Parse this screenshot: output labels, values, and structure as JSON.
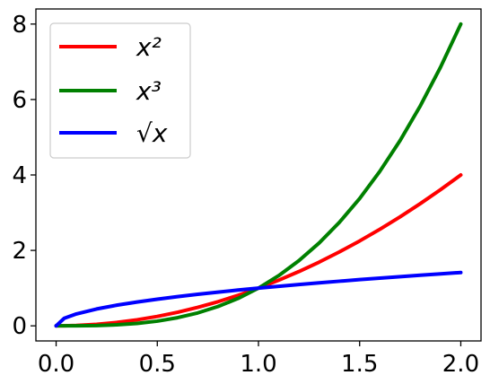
{
  "chart_data": {
    "type": "line",
    "xlim": [
      -0.1,
      2.1
    ],
    "ylim": [
      -0.4,
      8.4
    ],
    "xticks": [
      0.0,
      0.5,
      1.0,
      1.5,
      2.0
    ],
    "xtick_labels": [
      "0.0",
      "0.5",
      "1.0",
      "1.5",
      "2.0"
    ],
    "yticks": [
      0,
      2,
      4,
      6,
      8
    ],
    "ytick_labels": [
      "0",
      "2",
      "4",
      "6",
      "8"
    ],
    "grid": false,
    "legend_position": "top-left",
    "x": [
      0.0,
      0.04,
      0.1,
      0.2,
      0.3,
      0.4,
      0.5,
      0.6,
      0.7,
      0.8,
      0.9,
      1.0,
      1.1,
      1.2,
      1.3,
      1.4,
      1.5,
      1.6,
      1.7,
      1.8,
      1.9,
      2.0
    ],
    "series": [
      {
        "name": "x²",
        "color": "#ff0000",
        "values": [
          0.0,
          0.0016,
          0.01,
          0.04,
          0.09,
          0.16,
          0.25,
          0.36,
          0.49,
          0.64,
          0.81,
          1.0,
          1.21,
          1.44,
          1.69,
          1.96,
          2.25,
          2.56,
          2.89,
          3.24,
          3.61,
          4.0
        ]
      },
      {
        "name": "x³",
        "color": "#008000",
        "values": [
          0.0,
          6.4e-05,
          0.001,
          0.008,
          0.027,
          0.064,
          0.125,
          0.216,
          0.343,
          0.512,
          0.729,
          1.0,
          1.331,
          1.728,
          2.197,
          2.744,
          3.375,
          4.096,
          4.913,
          5.832,
          6.859,
          8.0
        ]
      },
      {
        "name": "√x",
        "color": "#0000ff",
        "values": [
          0.0,
          0.2,
          0.316,
          0.447,
          0.548,
          0.632,
          0.707,
          0.775,
          0.837,
          0.894,
          0.949,
          1.0,
          1.049,
          1.095,
          1.14,
          1.183,
          1.225,
          1.265,
          1.304,
          1.342,
          1.378,
          1.414
        ]
      }
    ]
  }
}
